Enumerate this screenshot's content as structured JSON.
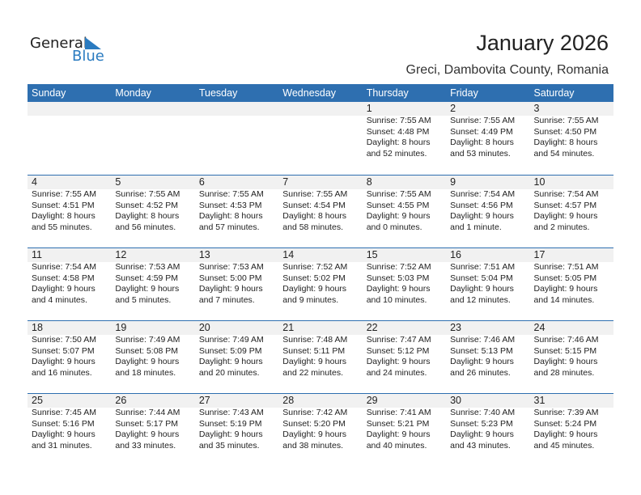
{
  "logo": {
    "word1": "General",
    "word2": "Blue",
    "color": "#2a7bc0"
  },
  "title": "January 2026",
  "subtitle": "Greci, Dambovita County, Romania",
  "header_color": "#2e6fb0",
  "weekdays": [
    "Sunday",
    "Monday",
    "Tuesday",
    "Wednesday",
    "Thursday",
    "Friday",
    "Saturday"
  ],
  "weeks": [
    [
      null,
      null,
      null,
      null,
      {
        "day": "1",
        "sunrise": "Sunrise: 7:55 AM",
        "sunset": "Sunset: 4:48 PM",
        "daylight": "Daylight: 8 hours",
        "minutes": "and 52 minutes."
      },
      {
        "day": "2",
        "sunrise": "Sunrise: 7:55 AM",
        "sunset": "Sunset: 4:49 PM",
        "daylight": "Daylight: 8 hours",
        "minutes": "and 53 minutes."
      },
      {
        "day": "3",
        "sunrise": "Sunrise: 7:55 AM",
        "sunset": "Sunset: 4:50 PM",
        "daylight": "Daylight: 8 hours",
        "minutes": "and 54 minutes."
      }
    ],
    [
      {
        "day": "4",
        "sunrise": "Sunrise: 7:55 AM",
        "sunset": "Sunset: 4:51 PM",
        "daylight": "Daylight: 8 hours",
        "minutes": "and 55 minutes."
      },
      {
        "day": "5",
        "sunrise": "Sunrise: 7:55 AM",
        "sunset": "Sunset: 4:52 PM",
        "daylight": "Daylight: 8 hours",
        "minutes": "and 56 minutes."
      },
      {
        "day": "6",
        "sunrise": "Sunrise: 7:55 AM",
        "sunset": "Sunset: 4:53 PM",
        "daylight": "Daylight: 8 hours",
        "minutes": "and 57 minutes."
      },
      {
        "day": "7",
        "sunrise": "Sunrise: 7:55 AM",
        "sunset": "Sunset: 4:54 PM",
        "daylight": "Daylight: 8 hours",
        "minutes": "and 58 minutes."
      },
      {
        "day": "8",
        "sunrise": "Sunrise: 7:55 AM",
        "sunset": "Sunset: 4:55 PM",
        "daylight": "Daylight: 9 hours",
        "minutes": "and 0 minutes."
      },
      {
        "day": "9",
        "sunrise": "Sunrise: 7:54 AM",
        "sunset": "Sunset: 4:56 PM",
        "daylight": "Daylight: 9 hours",
        "minutes": "and 1 minute."
      },
      {
        "day": "10",
        "sunrise": "Sunrise: 7:54 AM",
        "sunset": "Sunset: 4:57 PM",
        "daylight": "Daylight: 9 hours",
        "minutes": "and 2 minutes."
      }
    ],
    [
      {
        "day": "11",
        "sunrise": "Sunrise: 7:54 AM",
        "sunset": "Sunset: 4:58 PM",
        "daylight": "Daylight: 9 hours",
        "minutes": "and 4 minutes."
      },
      {
        "day": "12",
        "sunrise": "Sunrise: 7:53 AM",
        "sunset": "Sunset: 4:59 PM",
        "daylight": "Daylight: 9 hours",
        "minutes": "and 5 minutes."
      },
      {
        "day": "13",
        "sunrise": "Sunrise: 7:53 AM",
        "sunset": "Sunset: 5:00 PM",
        "daylight": "Daylight: 9 hours",
        "minutes": "and 7 minutes."
      },
      {
        "day": "14",
        "sunrise": "Sunrise: 7:52 AM",
        "sunset": "Sunset: 5:02 PM",
        "daylight": "Daylight: 9 hours",
        "minutes": "and 9 minutes."
      },
      {
        "day": "15",
        "sunrise": "Sunrise: 7:52 AM",
        "sunset": "Sunset: 5:03 PM",
        "daylight": "Daylight: 9 hours",
        "minutes": "and 10 minutes."
      },
      {
        "day": "16",
        "sunrise": "Sunrise: 7:51 AM",
        "sunset": "Sunset: 5:04 PM",
        "daylight": "Daylight: 9 hours",
        "minutes": "and 12 minutes."
      },
      {
        "day": "17",
        "sunrise": "Sunrise: 7:51 AM",
        "sunset": "Sunset: 5:05 PM",
        "daylight": "Daylight: 9 hours",
        "minutes": "and 14 minutes."
      }
    ],
    [
      {
        "day": "18",
        "sunrise": "Sunrise: 7:50 AM",
        "sunset": "Sunset: 5:07 PM",
        "daylight": "Daylight: 9 hours",
        "minutes": "and 16 minutes."
      },
      {
        "day": "19",
        "sunrise": "Sunrise: 7:49 AM",
        "sunset": "Sunset: 5:08 PM",
        "daylight": "Daylight: 9 hours",
        "minutes": "and 18 minutes."
      },
      {
        "day": "20",
        "sunrise": "Sunrise: 7:49 AM",
        "sunset": "Sunset: 5:09 PM",
        "daylight": "Daylight: 9 hours",
        "minutes": "and 20 minutes."
      },
      {
        "day": "21",
        "sunrise": "Sunrise: 7:48 AM",
        "sunset": "Sunset: 5:11 PM",
        "daylight": "Daylight: 9 hours",
        "minutes": "and 22 minutes."
      },
      {
        "day": "22",
        "sunrise": "Sunrise: 7:47 AM",
        "sunset": "Sunset: 5:12 PM",
        "daylight": "Daylight: 9 hours",
        "minutes": "and 24 minutes."
      },
      {
        "day": "23",
        "sunrise": "Sunrise: 7:46 AM",
        "sunset": "Sunset: 5:13 PM",
        "daylight": "Daylight: 9 hours",
        "minutes": "and 26 minutes."
      },
      {
        "day": "24",
        "sunrise": "Sunrise: 7:46 AM",
        "sunset": "Sunset: 5:15 PM",
        "daylight": "Daylight: 9 hours",
        "minutes": "and 28 minutes."
      }
    ],
    [
      {
        "day": "25",
        "sunrise": "Sunrise: 7:45 AM",
        "sunset": "Sunset: 5:16 PM",
        "daylight": "Daylight: 9 hours",
        "minutes": "and 31 minutes."
      },
      {
        "day": "26",
        "sunrise": "Sunrise: 7:44 AM",
        "sunset": "Sunset: 5:17 PM",
        "daylight": "Daylight: 9 hours",
        "minutes": "and 33 minutes."
      },
      {
        "day": "27",
        "sunrise": "Sunrise: 7:43 AM",
        "sunset": "Sunset: 5:19 PM",
        "daylight": "Daylight: 9 hours",
        "minutes": "and 35 minutes."
      },
      {
        "day": "28",
        "sunrise": "Sunrise: 7:42 AM",
        "sunset": "Sunset: 5:20 PM",
        "daylight": "Daylight: 9 hours",
        "minutes": "and 38 minutes."
      },
      {
        "day": "29",
        "sunrise": "Sunrise: 7:41 AM",
        "sunset": "Sunset: 5:21 PM",
        "daylight": "Daylight: 9 hours",
        "minutes": "and 40 minutes."
      },
      {
        "day": "30",
        "sunrise": "Sunrise: 7:40 AM",
        "sunset": "Sunset: 5:23 PM",
        "daylight": "Daylight: 9 hours",
        "minutes": "and 43 minutes."
      },
      {
        "day": "31",
        "sunrise": "Sunrise: 7:39 AM",
        "sunset": "Sunset: 5:24 PM",
        "daylight": "Daylight: 9 hours",
        "minutes": "and 45 minutes."
      }
    ]
  ]
}
